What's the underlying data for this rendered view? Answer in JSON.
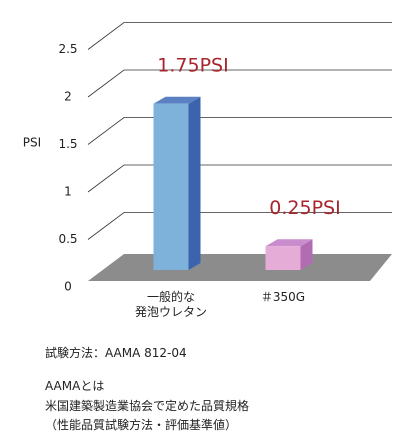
{
  "chart_data": {
    "type": "bar3d",
    "y_label": "PSI",
    "categories": [
      "一般的な\n発泡ウレタン",
      "＃350G"
    ],
    "values": [
      1.75,
      0.25
    ],
    "value_labels": [
      "1.75PSI",
      "0.25PSI"
    ],
    "colors": [
      "#7fb2da",
      "#e4acd6"
    ],
    "side_colors": [
      "#3c63ad",
      "#b26cb2"
    ],
    "top_colors": [
      "#5b80c4",
      "#c98ccc"
    ],
    "label_color": "#a8252d",
    "ylim": [
      0,
      2.5
    ],
    "yticks": [
      0,
      0.5,
      1,
      1.5,
      2,
      2.5
    ],
    "grid": true
  },
  "notes": [
    "試験方法：AAMA 812-04",
    "AAMAとは",
    "米国建築製造業協会で定めた品質規格",
    "（性能品質試験方法・評価基準値）"
  ]
}
